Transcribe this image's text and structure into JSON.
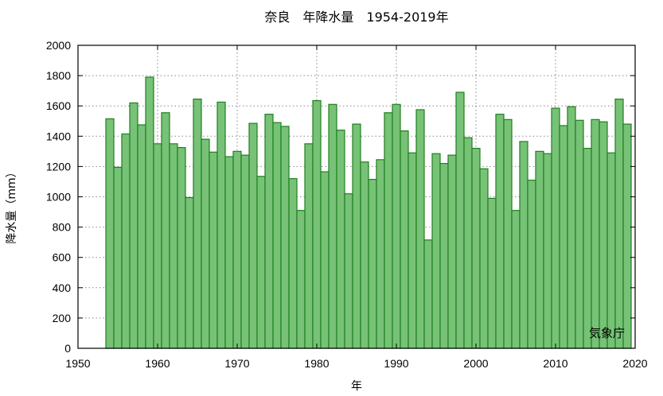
{
  "chart_data": {
    "type": "bar",
    "title": "奈良　年降水量　1954-2019年",
    "xlabel": "年",
    "ylabel": "降水量（mm）",
    "source_note": "気象庁",
    "xlim": [
      1950,
      2020
    ],
    "ylim": [
      0,
      2000
    ],
    "xticks": [
      1950,
      1960,
      1970,
      1980,
      1990,
      2000,
      2010,
      2020
    ],
    "yticks": [
      0,
      200,
      400,
      600,
      800,
      1000,
      1200,
      1400,
      1600,
      1800,
      2000
    ],
    "grid": true,
    "bar_color": "#77c277",
    "bar_edge_color": "#1f7f1f",
    "x": [
      1954,
      1955,
      1956,
      1957,
      1958,
      1959,
      1960,
      1961,
      1962,
      1963,
      1964,
      1965,
      1966,
      1967,
      1968,
      1969,
      1970,
      1971,
      1972,
      1973,
      1974,
      1975,
      1976,
      1977,
      1978,
      1979,
      1980,
      1981,
      1982,
      1983,
      1984,
      1985,
      1986,
      1987,
      1988,
      1989,
      1990,
      1991,
      1992,
      1993,
      1994,
      1995,
      1996,
      1997,
      1998,
      1999,
      2000,
      2001,
      2002,
      2003,
      2004,
      2005,
      2006,
      2007,
      2008,
      2009,
      2010,
      2011,
      2012,
      2013,
      2014,
      2015,
      2016,
      2017,
      2018,
      2019
    ],
    "values": [
      1515,
      1195,
      1415,
      1620,
      1475,
      1790,
      1350,
      1555,
      1350,
      1325,
      995,
      1645,
      1380,
      1295,
      1625,
      1265,
      1300,
      1275,
      1485,
      1135,
      1545,
      1490,
      1465,
      1120,
      910,
      1350,
      1635,
      1165,
      1610,
      1440,
      1020,
      1480,
      1230,
      1115,
      1245,
      1555,
      1610,
      1435,
      1290,
      1575,
      715,
      1285,
      1220,
      1275,
      1690,
      1390,
      1320,
      1185,
      990,
      1545,
      1510,
      910,
      1365,
      1110,
      1300,
      1285,
      1585,
      1470,
      1595,
      1505,
      1320,
      1510,
      1495,
      1290,
      1645,
      1480
    ]
  }
}
